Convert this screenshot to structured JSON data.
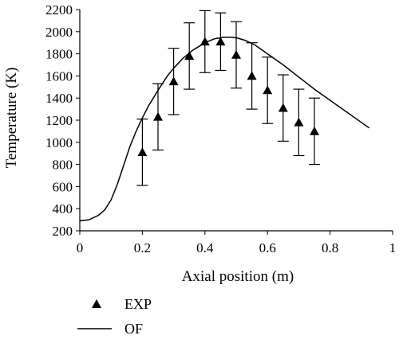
{
  "chart_data": {
    "type": "line",
    "xlabel": "Axial position (m)",
    "ylabel": "Temperature (K)",
    "xlim": [
      0,
      1
    ],
    "ylim": [
      200,
      2200
    ],
    "x_ticks": [
      0,
      0.2,
      0.4,
      0.6,
      0.8,
      1
    ],
    "x_tick_labels": [
      "0",
      "0.2",
      "0.4",
      "0.6",
      "0.8",
      "1"
    ],
    "y_ticks": [
      200,
      400,
      600,
      800,
      1000,
      1200,
      1400,
      1600,
      1800,
      2000,
      2200
    ],
    "y_tick_labels": [
      "200",
      "400",
      "600",
      "800",
      "1000",
      "1200",
      "1400",
      "1600",
      "1800",
      "2000",
      "2200"
    ],
    "grid": false,
    "legend_placement": "bottom-left",
    "series": [
      {
        "name": "EXP",
        "kind": "scatter",
        "marker": "triangle",
        "x": [
          0.2,
          0.25,
          0.3,
          0.35,
          0.4,
          0.45,
          0.5,
          0.55,
          0.6,
          0.65,
          0.7,
          0.75
        ],
        "y": [
          910,
          1230,
          1550,
          1780,
          1910,
          1910,
          1790,
          1600,
          1470,
          1310,
          1180,
          1100
        ],
        "error": [
          300,
          300,
          300,
          300,
          280,
          260,
          300,
          300,
          300,
          300,
          300,
          300
        ]
      },
      {
        "name": "OF",
        "kind": "line",
        "x": [
          0,
          0.03,
          0.06,
          0.08,
          0.1,
          0.12,
          0.14,
          0.16,
          0.18,
          0.2,
          0.22,
          0.25,
          0.28,
          0.3,
          0.33,
          0.36,
          0.4,
          0.43,
          0.46,
          0.48,
          0.5,
          0.53,
          0.56,
          0.6,
          0.65,
          0.7,
          0.75,
          0.8,
          0.85,
          0.9,
          0.925
        ],
        "y": [
          290,
          300,
          340,
          390,
          480,
          620,
          790,
          960,
          1100,
          1220,
          1330,
          1470,
          1600,
          1670,
          1760,
          1830,
          1900,
          1935,
          1950,
          1950,
          1945,
          1920,
          1880,
          1800,
          1700,
          1590,
          1480,
          1380,
          1280,
          1180,
          1130
        ]
      }
    ],
    "colors": {
      "axis": "#000000",
      "series": "#000000"
    }
  }
}
